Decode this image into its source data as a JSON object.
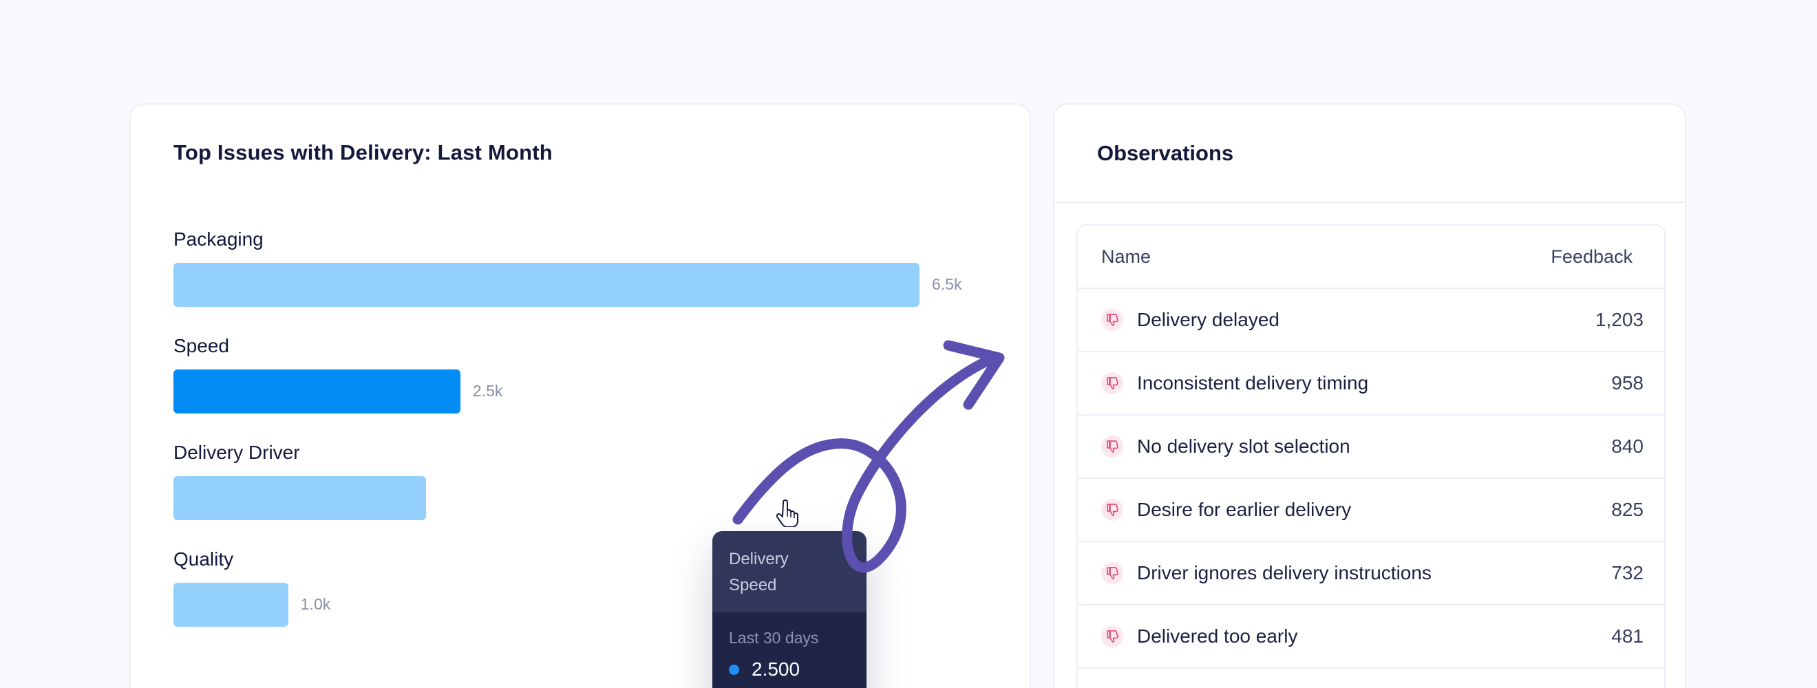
{
  "chart_card": {
    "title": "Top Issues with Delivery: Last Month"
  },
  "chart_data": {
    "type": "bar",
    "orientation": "horizontal",
    "title": "Top Issues with Delivery: Last Month",
    "categories": [
      "Packaging",
      "Speed",
      "Delivery Driver",
      "Quality"
    ],
    "values": [
      6500,
      2500,
      2200,
      1000
    ],
    "value_labels": [
      "6.5k",
      "2.5k",
      "",
      "1.0k"
    ],
    "active_index": 1,
    "xlim": [
      0,
      6500
    ],
    "colors": {
      "bar": "#93d0fb",
      "active": "#038cf3"
    },
    "grid": false
  },
  "tooltip": {
    "header_line1": "Delivery",
    "header_line2": "Speed",
    "period": "Last 30 days",
    "value": "2.500",
    "dot_color": "#1f8ff5"
  },
  "observations": {
    "title": "Observations",
    "columns": {
      "name": "Name",
      "feedback": "Feedback"
    },
    "rows": [
      {
        "name": "Delivery delayed",
        "value": "1,203",
        "icon": "thumbs-down-icon"
      },
      {
        "name": "Inconsistent delivery timing",
        "value": "958",
        "icon": "thumbs-down-icon"
      },
      {
        "name": "No delivery slot selection",
        "value": "840",
        "icon": "thumbs-down-icon"
      },
      {
        "name": "Desire for earlier delivery",
        "value": "825",
        "icon": "thumbs-down-icon"
      },
      {
        "name": "Driver ignores delivery instructions",
        "value": "732",
        "icon": "thumbs-down-icon"
      },
      {
        "name": "Delivered too early",
        "value": "481",
        "icon": "thumbs-down-icon"
      }
    ]
  },
  "colors": {
    "background": "#f9f9fd",
    "arrow": "#5b4fb0",
    "thumb_icon": "#e0517c"
  }
}
